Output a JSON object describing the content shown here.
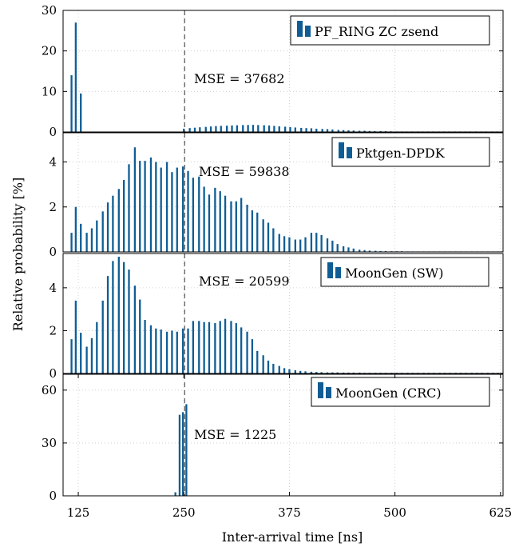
{
  "chart_data": {
    "type": "bar",
    "xlabel": "Inter-arrival time [ns]",
    "ylabel": "Relative probability [%]",
    "xlim": [
      107,
      628
    ],
    "x_ticks": [
      125,
      250,
      375,
      500,
      625
    ],
    "reference_line_x": 251,
    "bar_color": "#0f5d94",
    "panels": [
      {
        "name": "PF_RING ZC zsend",
        "mse": "MSE = 37682",
        "ylim": [
          0,
          30
        ],
        "y_ticks": [
          0,
          10,
          20,
          30
        ],
        "x": [
          117,
          122,
          128,
          250,
          257,
          263,
          269,
          276,
          282,
          288,
          294,
          301,
          307,
          313,
          320,
          326,
          332,
          338,
          345,
          351,
          357,
          363,
          370,
          376,
          382,
          389,
          395,
          401,
          407,
          414,
          420,
          426,
          433,
          439,
          445,
          451,
          458,
          464,
          470,
          476,
          483,
          489,
          495,
          502,
          508,
          514,
          520,
          527,
          533,
          539,
          545,
          552,
          558,
          564,
          571,
          577,
          583,
          589,
          596,
          602,
          608,
          615,
          621,
          627
        ],
        "y": [
          14,
          27,
          9.5,
          0.8,
          0.95,
          1.05,
          1.15,
          1.25,
          1.35,
          1.45,
          1.5,
          1.55,
          1.6,
          1.65,
          1.7,
          1.72,
          1.75,
          1.7,
          1.65,
          1.6,
          1.5,
          1.4,
          1.3,
          1.2,
          1.1,
          1.0,
          0.95,
          0.9,
          0.8,
          0.75,
          0.7,
          0.6,
          0.5,
          0.45,
          0.4,
          0.35,
          0.3,
          0.3,
          0.25,
          0.2,
          0.2,
          0.18,
          0.15,
          0.12,
          0.1,
          0.1,
          0.08,
          0.07,
          0.06,
          0.05,
          0.05,
          0.04,
          0.04,
          0.03,
          0.03,
          0.03,
          0.02,
          0.02,
          0.02,
          0.02,
          0.01,
          0.01,
          0.01,
          0.01
        ]
      },
      {
        "name": "Pktgen-DPDK",
        "mse": "MSE = 59838",
        "ylim": [
          0,
          5.3
        ],
        "y_ticks": [
          0,
          2,
          4
        ],
        "x": [
          117,
          122,
          128,
          135,
          141,
          147,
          154,
          160,
          166,
          173,
          179,
          185,
          192,
          198,
          204,
          211,
          217,
          223,
          230,
          236,
          242,
          249,
          255,
          261,
          268,
          274,
          280,
          287,
          293,
          299,
          306,
          312,
          318,
          325,
          331,
          337,
          344,
          350,
          356,
          363,
          369,
          375,
          382,
          388,
          394,
          401,
          407,
          413,
          420,
          426,
          432,
          439,
          445,
          451,
          458,
          464,
          470,
          477,
          483,
          489,
          496,
          502,
          508,
          515,
          521,
          527,
          534,
          540,
          546,
          553,
          559,
          565,
          572,
          578,
          584,
          591,
          597,
          603,
          610,
          616,
          622,
          627
        ],
        "y": [
          0.85,
          2.0,
          1.25,
          0.85,
          1.05,
          1.4,
          1.8,
          2.2,
          2.5,
          2.8,
          3.2,
          3.9,
          4.65,
          4.05,
          4.05,
          4.2,
          4.0,
          3.75,
          4.0,
          3.55,
          3.75,
          3.8,
          3.6,
          3.3,
          3.35,
          2.9,
          2.55,
          2.85,
          2.7,
          2.5,
          2.25,
          2.25,
          2.4,
          2.1,
          1.85,
          1.75,
          1.45,
          1.3,
          1.05,
          0.8,
          0.7,
          0.65,
          0.55,
          0.55,
          0.65,
          0.85,
          0.85,
          0.75,
          0.6,
          0.5,
          0.35,
          0.25,
          0.2,
          0.15,
          0.1,
          0.08,
          0.06,
          0.05,
          0.04,
          0.04,
          0.03,
          0.03,
          0.03,
          0.02,
          0.02,
          0.02,
          0.02,
          0.02,
          0.02,
          0.02,
          0.02,
          0.02,
          0.02,
          0.02,
          0.02,
          0.02,
          0.02,
          0.02,
          0.02,
          0.02,
          0.02,
          0.02
        ]
      },
      {
        "name": "MoonGen (SW)",
        "mse": "MSE = 20599",
        "ylim": [
          0,
          5.6
        ],
        "y_ticks": [
          0,
          2,
          4
        ],
        "x": [
          117,
          122,
          128,
          135,
          141,
          147,
          154,
          160,
          166,
          173,
          179,
          185,
          192,
          198,
          204,
          211,
          217,
          223,
          230,
          236,
          242,
          249,
          255,
          261,
          268,
          274,
          280,
          287,
          293,
          299,
          306,
          312,
          318,
          325,
          331,
          337,
          344,
          350,
          356,
          363,
          369,
          375,
          382,
          388,
          394,
          401,
          407,
          413,
          420,
          426,
          432,
          439,
          445,
          451,
          458,
          464,
          470,
          477,
          483,
          489,
          496,
          502,
          508,
          515,
          521,
          527,
          534,
          540,
          546,
          553,
          559,
          565,
          572,
          578,
          584,
          591,
          597,
          603,
          610,
          616,
          622,
          627
        ],
        "y": [
          1.6,
          3.4,
          1.9,
          1.25,
          1.65,
          2.4,
          3.4,
          4.55,
          5.25,
          5.45,
          5.2,
          4.85,
          4.1,
          3.45,
          2.5,
          2.25,
          2.1,
          2.05,
          1.95,
          2.0,
          1.95,
          2.1,
          2.1,
          2.45,
          2.45,
          2.4,
          2.4,
          2.35,
          2.45,
          2.55,
          2.45,
          2.35,
          2.15,
          1.95,
          1.6,
          1.05,
          0.85,
          0.6,
          0.45,
          0.35,
          0.25,
          0.2,
          0.15,
          0.12,
          0.1,
          0.08,
          0.07,
          0.06,
          0.05,
          0.05,
          0.05,
          0.04,
          0.04,
          0.04,
          0.04,
          0.03,
          0.03,
          0.03,
          0.03,
          0.03,
          0.03,
          0.03,
          0.03,
          0.03,
          0.03,
          0.03,
          0.03,
          0.03,
          0.03,
          0.03,
          0.03,
          0.03,
          0.03,
          0.03,
          0.03,
          0.03,
          0.03,
          0.03,
          0.03,
          0.03,
          0.03,
          0.03
        ]
      },
      {
        "name": "MoonGen (CRC)",
        "mse": "MSE = 1225",
        "ylim": [
          0,
          69
        ],
        "y_ticks": [
          0,
          30,
          60
        ],
        "x": [
          240,
          245,
          249,
          253
        ],
        "y": [
          2,
          46,
          47.5,
          52
        ]
      }
    ]
  }
}
